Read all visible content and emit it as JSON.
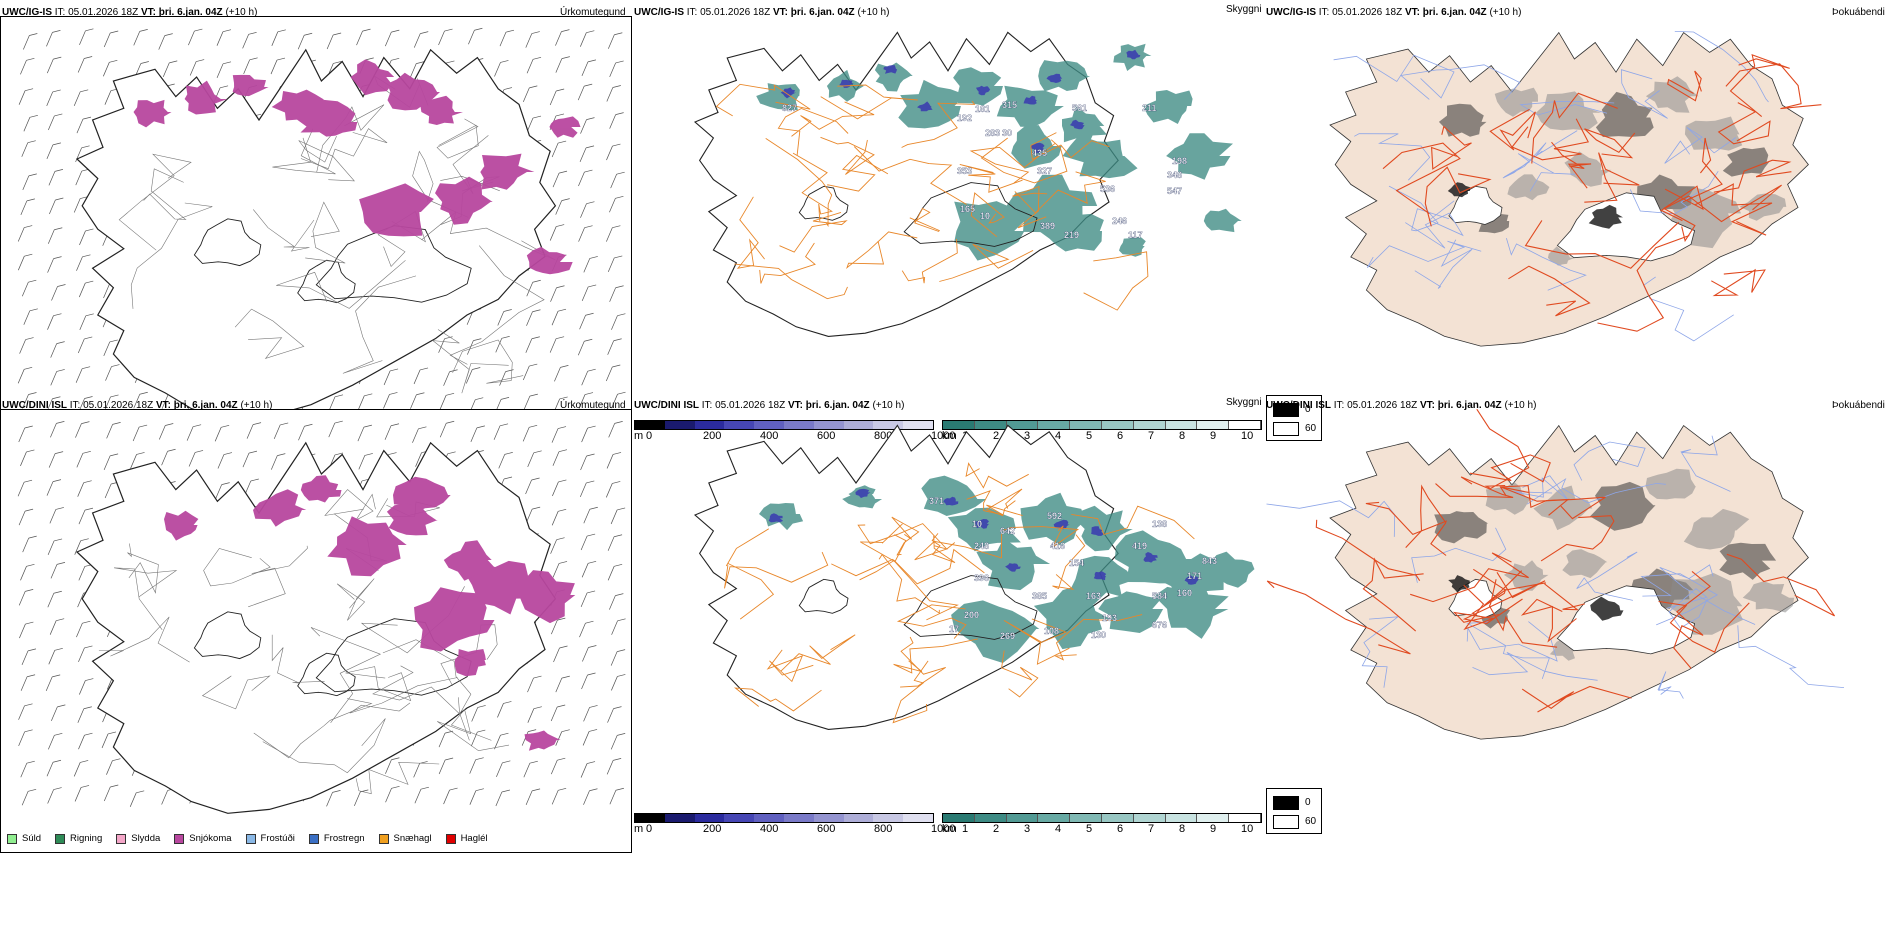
{
  "rows": [
    {
      "model": "UWC/IG-IS",
      "it_label": "IT:",
      "it_value": "05.01.2026 18Z",
      "vt_label": "VT:",
      "vt_value": "þri. 6.jan. 04Z",
      "lead": "(+10 h)",
      "ceiling_labels": [
        "827",
        "192",
        "181",
        "315",
        "283",
        "30",
        "435",
        "327",
        "353",
        "561",
        "211",
        "198",
        "348",
        "547",
        "536",
        "389",
        "165",
        "219",
        "246",
        "117",
        "10"
      ]
    },
    {
      "model": "UWC/DINI ISL",
      "it_label": "IT:",
      "it_value": "05.01.2026 18Z",
      "vt_label": "VT:",
      "vt_value": "þri. 6.jan. 04Z",
      "lead": "(+10 h)",
      "ceiling_labels": [
        "371",
        "10",
        "642",
        "592",
        "248",
        "416",
        "138",
        "396",
        "154",
        "419",
        "843",
        "171",
        "160",
        "385",
        "163",
        "584",
        "200",
        "676",
        "193",
        "269",
        "108",
        "130",
        "17"
      ]
    }
  ],
  "panel_titles": {
    "precip": "Úrkomutegund",
    "visibility": "Skyggni",
    "fog": "Þokuábendi"
  },
  "precip_legend": [
    {
      "label": "Súld",
      "color": "#90ee90"
    },
    {
      "label": "Rigning",
      "color": "#2e8b57"
    },
    {
      "label": "Slydda",
      "color": "#f4a6c8"
    },
    {
      "label": "Snjókoma",
      "color": "#b8479f"
    },
    {
      "label": "Frostúði",
      "color": "#8ab8e6"
    },
    {
      "label": "Frostregn",
      "color": "#3a6fc4"
    },
    {
      "label": "Snæhagl",
      "color": "#f0a020"
    },
    {
      "label": "Haglél",
      "color": "#e00000"
    }
  ],
  "ceiling_bar": {
    "unit": "m",
    "ticks": [
      "0",
      "200",
      "400",
      "600",
      "800",
      "1000"
    ],
    "colors": [
      "#000000",
      "#1a1a6e",
      "#2b2b9e",
      "#4646b4",
      "#6060c0",
      "#7a7ac8",
      "#9494d0",
      "#aeaed8",
      "#c8c8e4",
      "#e0e0f0"
    ]
  },
  "vis_bar": {
    "unit": "km",
    "ticks": [
      "1",
      "2",
      "3",
      "4",
      "5",
      "6",
      "7",
      "8",
      "9",
      "10"
    ],
    "colors": [
      "#2a7a72",
      "#3e8b84",
      "#529a94",
      "#68aaa4",
      "#80b9b4",
      "#98c7c3",
      "#b0d5d2",
      "#c8e3e1",
      "#e0f0ef",
      "#ffffff"
    ]
  },
  "fog_legend": {
    "values": [
      "0",
      "60"
    ],
    "colors": [
      "#000000",
      "#ffffff"
    ]
  }
}
